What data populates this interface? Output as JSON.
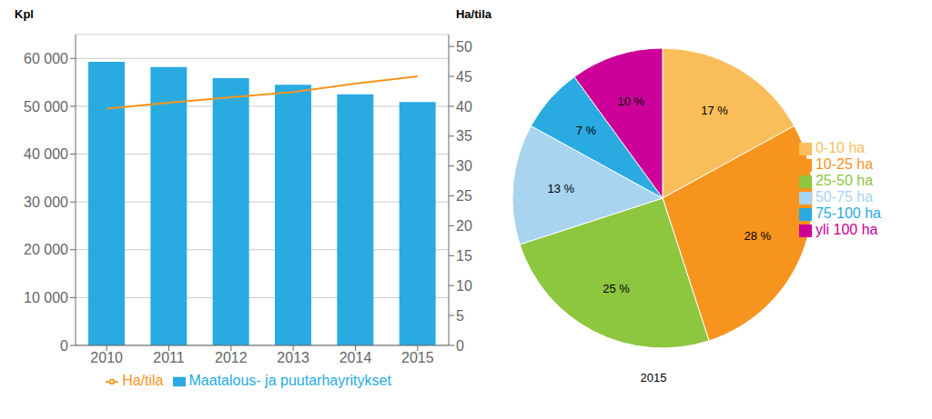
{
  "chart_data": [
    {
      "type": "bar",
      "categories": [
        "2010",
        "2011",
        "2012",
        "2013",
        "2014",
        "2015"
      ],
      "series": [
        {
          "name": "Maatalous- ja puutarhayritykset",
          "type": "bar",
          "color": "#29ABE2",
          "values": [
            59300,
            58200,
            55900,
            54500,
            52500,
            50900
          ]
        },
        {
          "name": "Ha/tila",
          "type": "line",
          "color": "#F7941D",
          "axis": "y2",
          "values": [
            39.6,
            40.6,
            41.5,
            42.4,
            43.8,
            45.0
          ]
        }
      ],
      "ylabel": "Kpl",
      "y2label": "Ha/tila",
      "ylim": [
        0,
        65000
      ],
      "yticks": [
        0,
        {
          "value": 10000,
          "label": "10 000"
        },
        {
          "value": 20000,
          "label": "20 000"
        },
        {
          "value": 30000,
          "label": "30 000"
        },
        {
          "value": 40000,
          "label": "40 000"
        },
        {
          "value": 50000,
          "label": "50 000"
        },
        {
          "value": 60000,
          "label": "60 000"
        }
      ],
      "y2lim": [
        0,
        52
      ],
      "y2ticks": [
        0,
        5,
        10,
        15,
        20,
        25,
        30,
        35,
        40,
        45,
        50
      ],
      "grid": true,
      "legend": "bottom"
    },
    {
      "type": "pie",
      "title": "2015",
      "categories": [
        "0-10 ha",
        "10-25 ha",
        "25-50 ha",
        "50-75 ha",
        "75-100 ha",
        "yli 100 ha"
      ],
      "values": [
        17,
        28,
        25,
        13,
        7,
        10
      ],
      "value_labels": [
        "17 %",
        "28 %",
        "25 %",
        "13 %",
        "7 %",
        "10 %"
      ],
      "colors": [
        "#F9BE5A",
        "#F7941D",
        "#8DC63F",
        "#A8D4F0",
        "#29ABE2",
        "#CC0099"
      ],
      "data_labels": true,
      "legend": "right"
    }
  ]
}
